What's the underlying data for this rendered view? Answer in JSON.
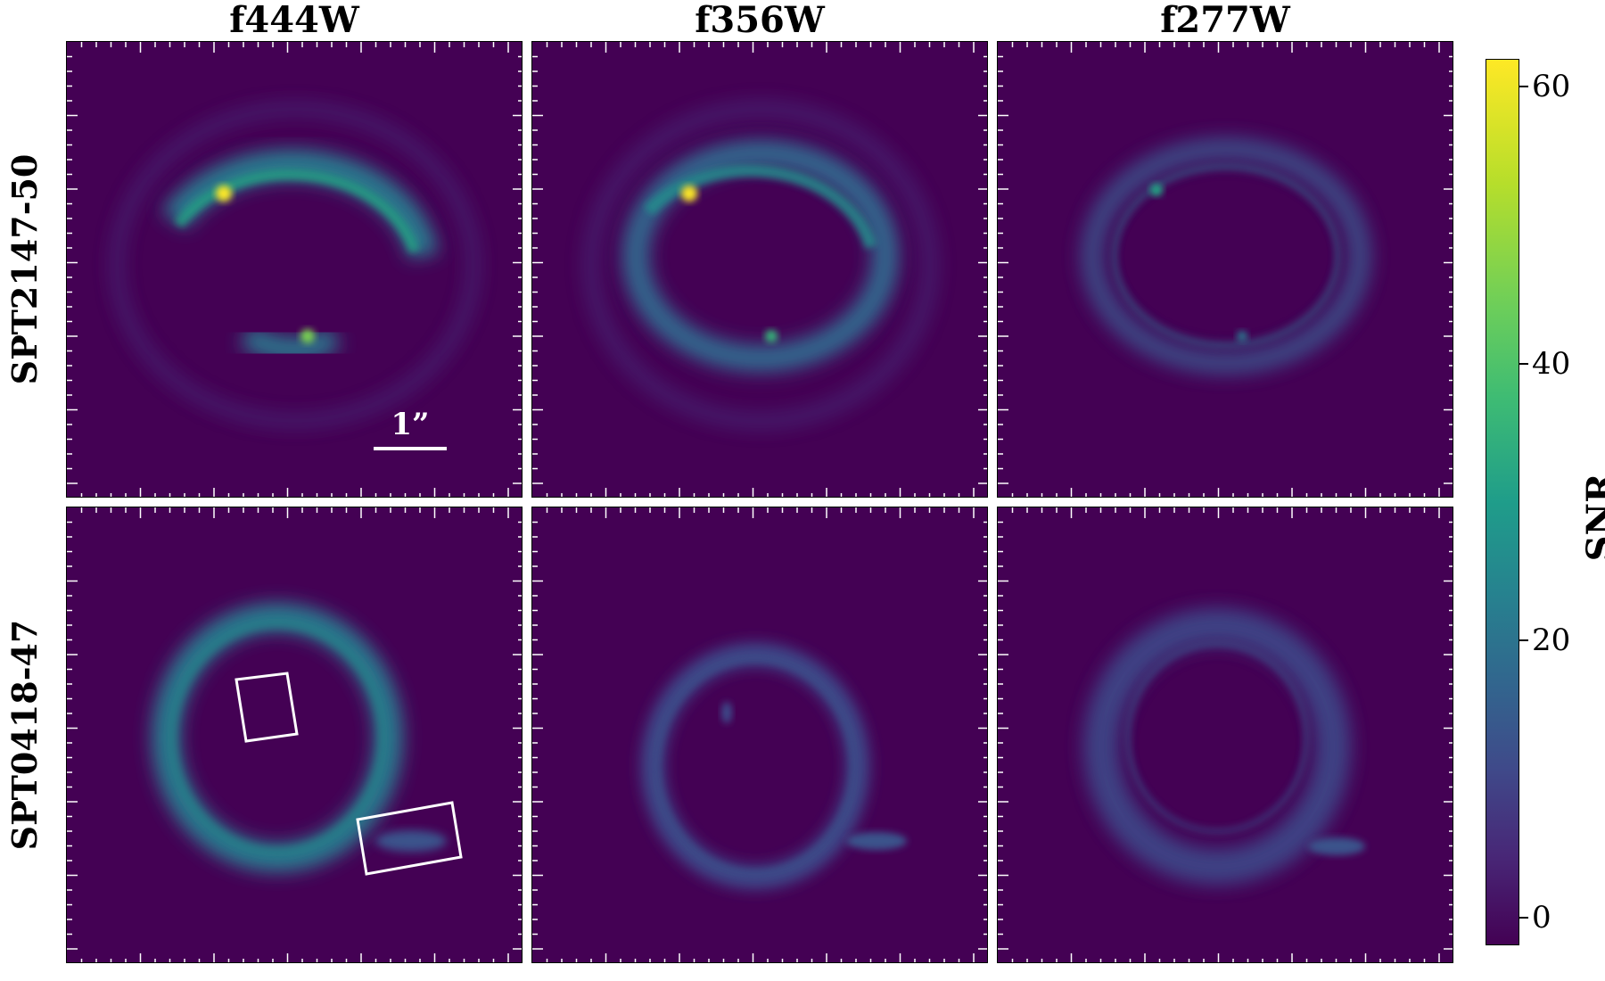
{
  "columns": [
    "f444W",
    "f356W",
    "f277W"
  ],
  "rows": [
    "SPT2147-50",
    "SPT0418-47"
  ],
  "scale_bar_label": "1”",
  "colorbar": {
    "label": "SNR",
    "ticks": [
      "0",
      "20",
      "40",
      "60"
    ],
    "tick_values": [
      0,
      20,
      40,
      60
    ],
    "range": [
      -2,
      62
    ],
    "colormap": "viridis"
  },
  "colors": {
    "background": "#440154",
    "frame": "#ffffff"
  }
}
